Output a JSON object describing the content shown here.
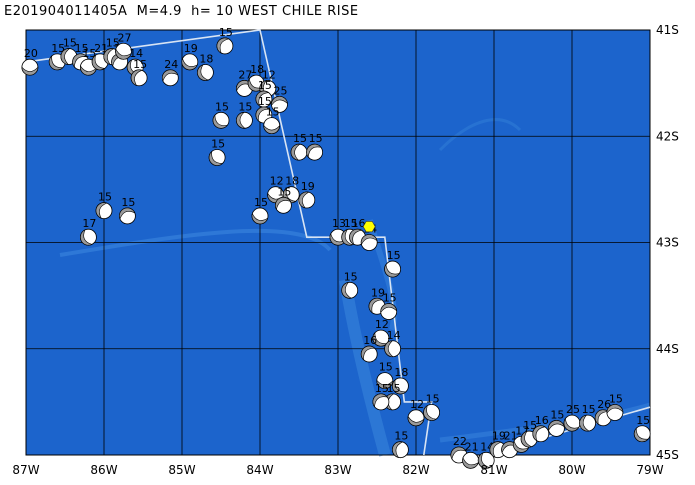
{
  "title": "E201904011405A  M=4.9  h= 10 WEST CHILE RISE",
  "colors": {
    "ocean": "#1c64cc",
    "ridge": "#3a86dd",
    "grid": "#000000",
    "plate_boundary": "#d8e4f4",
    "beachball_fill": "#9a9a9a",
    "beachball_face": "#ffffff",
    "event_marker": "#ffff00"
  },
  "map": {
    "lon_range": [
      -87,
      -79
    ],
    "lat_range": [
      -45,
      -41
    ],
    "lon_labels": [
      "87W",
      "86W",
      "85W",
      "84W",
      "83W",
      "82W",
      "81W",
      "80W",
      "79W"
    ],
    "lat_labels": [
      "41S",
      "42S",
      "43S",
      "44S",
      "45S"
    ],
    "main_event": {
      "lon": -82.6,
      "lat": -42.85,
      "symbol": "yellow-hexagon"
    }
  },
  "beachballs": [
    {
      "lon": -86.95,
      "lat": -41.35,
      "depth": "20"
    },
    {
      "lon": -86.6,
      "lat": -41.3,
      "depth": "15"
    },
    {
      "lon": -86.45,
      "lat": -41.25,
      "depth": "15"
    },
    {
      "lon": -86.3,
      "lat": -41.3,
      "depth": "15"
    },
    {
      "lon": -86.2,
      "lat": -41.35,
      "depth": "15"
    },
    {
      "lon": -86.05,
      "lat": -41.3,
      "depth": "21"
    },
    {
      "lon": -85.9,
      "lat": -41.25,
      "depth": "15"
    },
    {
      "lon": -85.8,
      "lat": -41.3,
      "depth": "17"
    },
    {
      "lon": -85.75,
      "lat": -41.2,
      "depth": "27"
    },
    {
      "lon": -85.6,
      "lat": -41.35,
      "depth": "14"
    },
    {
      "lon": -85.55,
      "lat": -41.45,
      "depth": "15"
    },
    {
      "lon": -85.15,
      "lat": -41.45,
      "depth": "24"
    },
    {
      "lon": -84.9,
      "lat": -41.3,
      "depth": "19"
    },
    {
      "lon": -84.7,
      "lat": -41.4,
      "depth": "18"
    },
    {
      "lon": -84.45,
      "lat": -41.15,
      "depth": "15"
    },
    {
      "lon": -84.2,
      "lat": -41.55,
      "depth": "27"
    },
    {
      "lon": -84.05,
      "lat": -41.5,
      "depth": "18"
    },
    {
      "lon": -83.9,
      "lat": -41.55,
      "depth": "12"
    },
    {
      "lon": -83.95,
      "lat": -41.65,
      "depth": "15"
    },
    {
      "lon": -83.75,
      "lat": -41.7,
      "depth": "25"
    },
    {
      "lon": -84.5,
      "lat": -41.85,
      "depth": "15"
    },
    {
      "lon": -84.2,
      "lat": -41.85,
      "depth": "15"
    },
    {
      "lon": -83.95,
      "lat": -41.8,
      "depth": "15"
    },
    {
      "lon": -83.85,
      "lat": -41.9,
      "depth": "15"
    },
    {
      "lon": -84.55,
      "lat": -42.2,
      "depth": "15"
    },
    {
      "lon": -83.5,
      "lat": -42.15,
      "depth": "15"
    },
    {
      "lon": -83.3,
      "lat": -42.15,
      "depth": "15"
    },
    {
      "lon": -83.8,
      "lat": -42.55,
      "depth": "12"
    },
    {
      "lon": -83.6,
      "lat": -42.55,
      "depth": "18"
    },
    {
      "lon": -83.4,
      "lat": -42.6,
      "depth": "19"
    },
    {
      "lon": -83.7,
      "lat": -42.65,
      "depth": "15"
    },
    {
      "lon": -84.0,
      "lat": -42.75,
      "depth": "15"
    },
    {
      "lon": -86.2,
      "lat": -42.95,
      "depth": "17"
    },
    {
      "lon": -86.0,
      "lat": -42.7,
      "depth": "15"
    },
    {
      "lon": -85.7,
      "lat": -42.75,
      "depth": "15"
    },
    {
      "lon": -83.0,
      "lat": -42.95,
      "depth": "13"
    },
    {
      "lon": -82.85,
      "lat": -42.95,
      "depth": "15"
    },
    {
      "lon": -82.75,
      "lat": -42.95,
      "depth": "16"
    },
    {
      "lon": -82.6,
      "lat": -43.0,
      "depth": "14"
    },
    {
      "lon": -82.3,
      "lat": -43.25,
      "depth": "15"
    },
    {
      "lon": -82.85,
      "lat": -43.45,
      "depth": "15"
    },
    {
      "lon": -82.5,
      "lat": -43.6,
      "depth": "19"
    },
    {
      "lon": -82.35,
      "lat": -43.65,
      "depth": "15"
    },
    {
      "lon": -82.45,
      "lat": -43.9,
      "depth": "12"
    },
    {
      "lon": -82.3,
      "lat": -44.0,
      "depth": "14"
    },
    {
      "lon": -82.6,
      "lat": -44.05,
      "depth": "16"
    },
    {
      "lon": -82.4,
      "lat": -44.3,
      "depth": "15"
    },
    {
      "lon": -82.2,
      "lat": -44.35,
      "depth": "18"
    },
    {
      "lon": -82.3,
      "lat": -44.5,
      "depth": "15"
    },
    {
      "lon": -82.45,
      "lat": -44.5,
      "depth": "15"
    },
    {
      "lon": -82.0,
      "lat": -44.65,
      "depth": "12"
    },
    {
      "lon": -81.8,
      "lat": -44.6,
      "depth": "15"
    },
    {
      "lon": -82.2,
      "lat": -44.95,
      "depth": "15"
    },
    {
      "lon": -81.45,
      "lat": -45.0,
      "depth": "22"
    },
    {
      "lon": -81.3,
      "lat": -45.05,
      "depth": "21"
    },
    {
      "lon": -81.1,
      "lat": -45.05,
      "depth": "14"
    },
    {
      "lon": -80.95,
      "lat": -44.95,
      "depth": "19"
    },
    {
      "lon": -80.8,
      "lat": -44.95,
      "depth": "21"
    },
    {
      "lon": -80.65,
      "lat": -44.9,
      "depth": "17"
    },
    {
      "lon": -80.55,
      "lat": -44.85,
      "depth": "15"
    },
    {
      "lon": -80.4,
      "lat": -44.8,
      "depth": "16"
    },
    {
      "lon": -80.2,
      "lat": -44.75,
      "depth": "15"
    },
    {
      "lon": -80.0,
      "lat": -44.7,
      "depth": "25"
    },
    {
      "lon": -79.8,
      "lat": -44.7,
      "depth": "15"
    },
    {
      "lon": -79.6,
      "lat": -44.65,
      "depth": "26"
    },
    {
      "lon": -79.45,
      "lat": -44.6,
      "depth": "15"
    },
    {
      "lon": -79.1,
      "lat": -44.8,
      "depth": "15"
    }
  ]
}
